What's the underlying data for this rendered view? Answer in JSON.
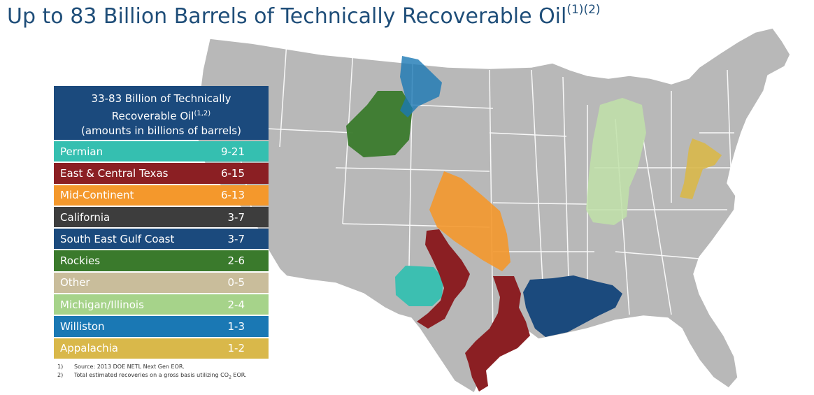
{
  "title": {
    "text": "Up to 83 Billion Barrels of Technically Recoverable Oil",
    "superscript": "(1)(2)"
  },
  "legend": {
    "header_line1": "33-83 Billion of Technically",
    "header_line2": "Recoverable Oil",
    "header_line2_sup": "(1,2)",
    "header_line3": "(amounts in billions of barrels)",
    "rows": [
      {
        "name": "Permian",
        "value": "9-21",
        "color": "#35bfb0"
      },
      {
        "name": "East & Central Texas",
        "value": "6-15",
        "color": "#8b1f23"
      },
      {
        "name": "Mid-Continent",
        "value": "6-13",
        "color": "#f4982c"
      },
      {
        "name": "California",
        "value": "3-7",
        "color": "#3d3d3d"
      },
      {
        "name": "South East Gulf Coast",
        "value": "3-7",
        "color": "#1b4a7d"
      },
      {
        "name": "Rockies",
        "value": "2-6",
        "color": "#3a7a2c"
      },
      {
        "name": "Other",
        "value": "0-5",
        "color": "#c9bd9b"
      },
      {
        "name": "Michigan/Illinois",
        "value": "2-4",
        "color": "#a6d38a"
      },
      {
        "name": "Williston",
        "value": "1-3",
        "color": "#1a78b4"
      },
      {
        "name": "Appalachia",
        "value": "1-2",
        "color": "#d9b84a"
      }
    ]
  },
  "footnotes": [
    {
      "num": "1)",
      "text": "Source: 2013 DOE NETL Next Gen EOR."
    },
    {
      "num": "2)",
      "text": "Total estimated recoveries on a gross basis utilizing CO",
      "sub": "2",
      "tail": " EOR."
    }
  ]
}
